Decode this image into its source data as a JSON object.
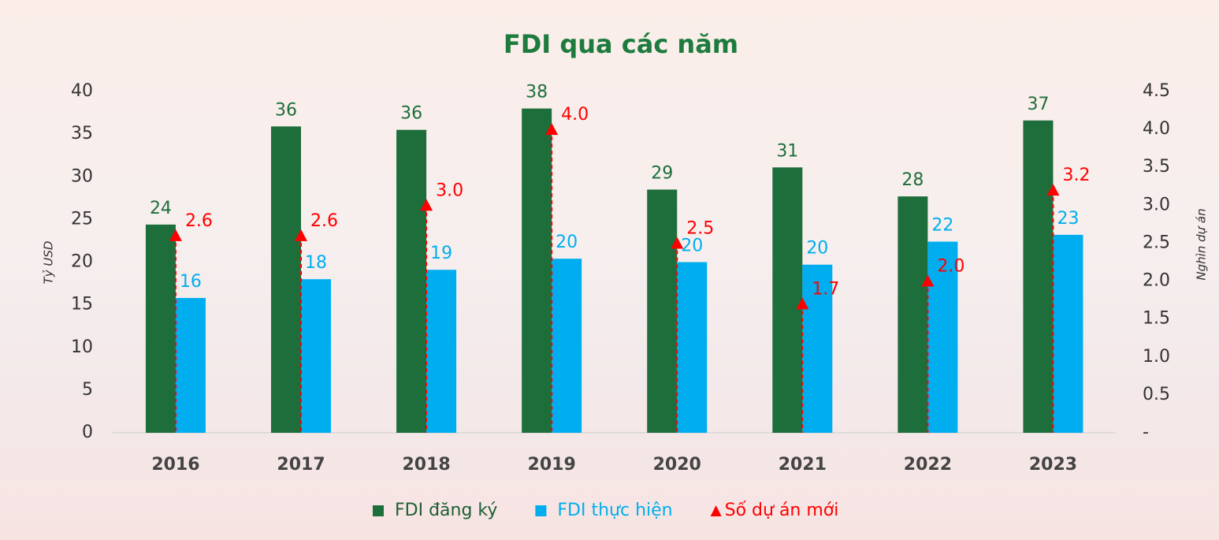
{
  "chart_data": {
    "type": "bar",
    "title": "FDI qua các năm",
    "ylabel": "Tỷ USD",
    "y2label": "Nghìn dự án",
    "categories": [
      "2016",
      "2017",
      "2018",
      "2019",
      "2020",
      "2021",
      "2022",
      "2023"
    ],
    "series": [
      {
        "name": "FDI đăng ký",
        "color": "#1e6e3c",
        "values": [
          24.4,
          35.9,
          35.5,
          38.0,
          28.5,
          31.1,
          27.7,
          36.6
        ],
        "value_labels": [
          "24",
          "36",
          "36",
          "38",
          "29",
          "31",
          "28",
          "37"
        ]
      },
      {
        "name": "FDI thực hiện",
        "color": "#00aeef",
        "values": [
          15.8,
          18.0,
          19.1,
          20.4,
          20.0,
          19.7,
          22.4,
          23.2
        ],
        "value_labels": [
          "16",
          "18",
          "19",
          "20",
          "20",
          "20",
          "22",
          "23"
        ]
      },
      {
        "name": "Số dự án mới",
        "color": "#ff0000",
        "type": "scatter",
        "axis": "y2",
        "values": [
          2.6,
          2.6,
          3.0,
          4.0,
          2.5,
          1.7,
          2.0,
          3.2
        ],
        "value_labels": [
          "2.6",
          "2.6",
          "3.0",
          "4.0",
          "2.5",
          "1.7",
          "2.0",
          "3.2"
        ]
      }
    ],
    "ylim": [
      0,
      40
    ],
    "yticks": [
      0,
      5,
      10,
      15,
      20,
      25,
      30,
      35,
      40
    ],
    "y2lim": [
      0,
      4.5
    ],
    "y2ticks": [
      {
        "value": 0,
        "label": "-"
      },
      0.5,
      {
        "value": 1.0,
        "label": "1.0"
      },
      1.5,
      {
        "value": 2.0,
        "label": "2.0"
      },
      2.5,
      {
        "value": 3.0,
        "label": "3.0"
      },
      3.5,
      {
        "value": 4.0,
        "label": "4.0"
      },
      4.5
    ],
    "grid": false
  }
}
